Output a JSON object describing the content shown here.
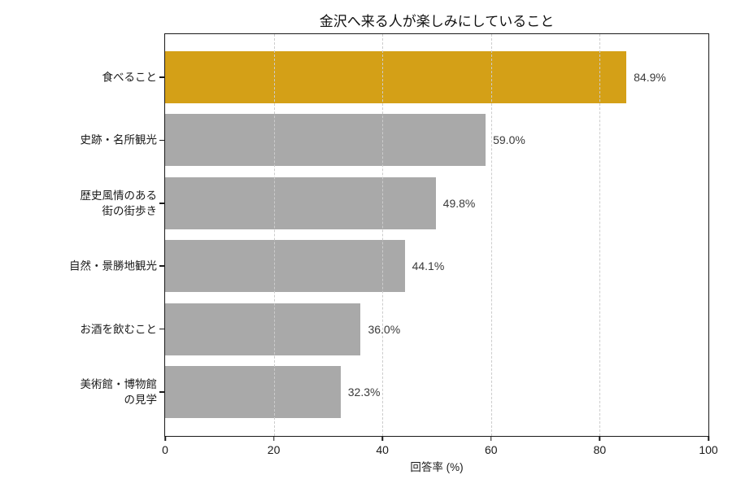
{
  "chart": {
    "title": "金沢へ来る人が楽しみにしていること",
    "xlabel": "回答率 (%)"
  },
  "chart_data": {
    "type": "bar",
    "orientation": "horizontal",
    "title": "金沢へ来る人が楽しみにしていること",
    "xlabel": "回答率 (%)",
    "ylabel": "",
    "categories": [
      "食べること",
      "史跡・名所観光",
      "歴史風情のある\n街の街歩き",
      "自然・景勝地観光",
      "お酒を飲むこと",
      "美術館・博物館\nの見学"
    ],
    "values": [
      84.9,
      59.0,
      49.8,
      44.1,
      36.0,
      32.3
    ],
    "value_labels": [
      "84.9%",
      "59.0%",
      "49.8%",
      "44.1%",
      "36.0%",
      "32.3%"
    ],
    "bar_colors": [
      "#D4A017",
      "#A9A9A9",
      "#A9A9A9",
      "#A9A9A9",
      "#A9A9A9",
      "#A9A9A9"
    ],
    "highlight_color": "#D4A017",
    "default_bar_color": "#A9A9A9",
    "xlim": [
      0,
      100
    ],
    "xticks": [
      0,
      20,
      40,
      60,
      80,
      100
    ],
    "grid": "vertical-dashed",
    "grid_color": "#cccccc",
    "spine_color": "#1a1a1a",
    "legend": "none"
  }
}
